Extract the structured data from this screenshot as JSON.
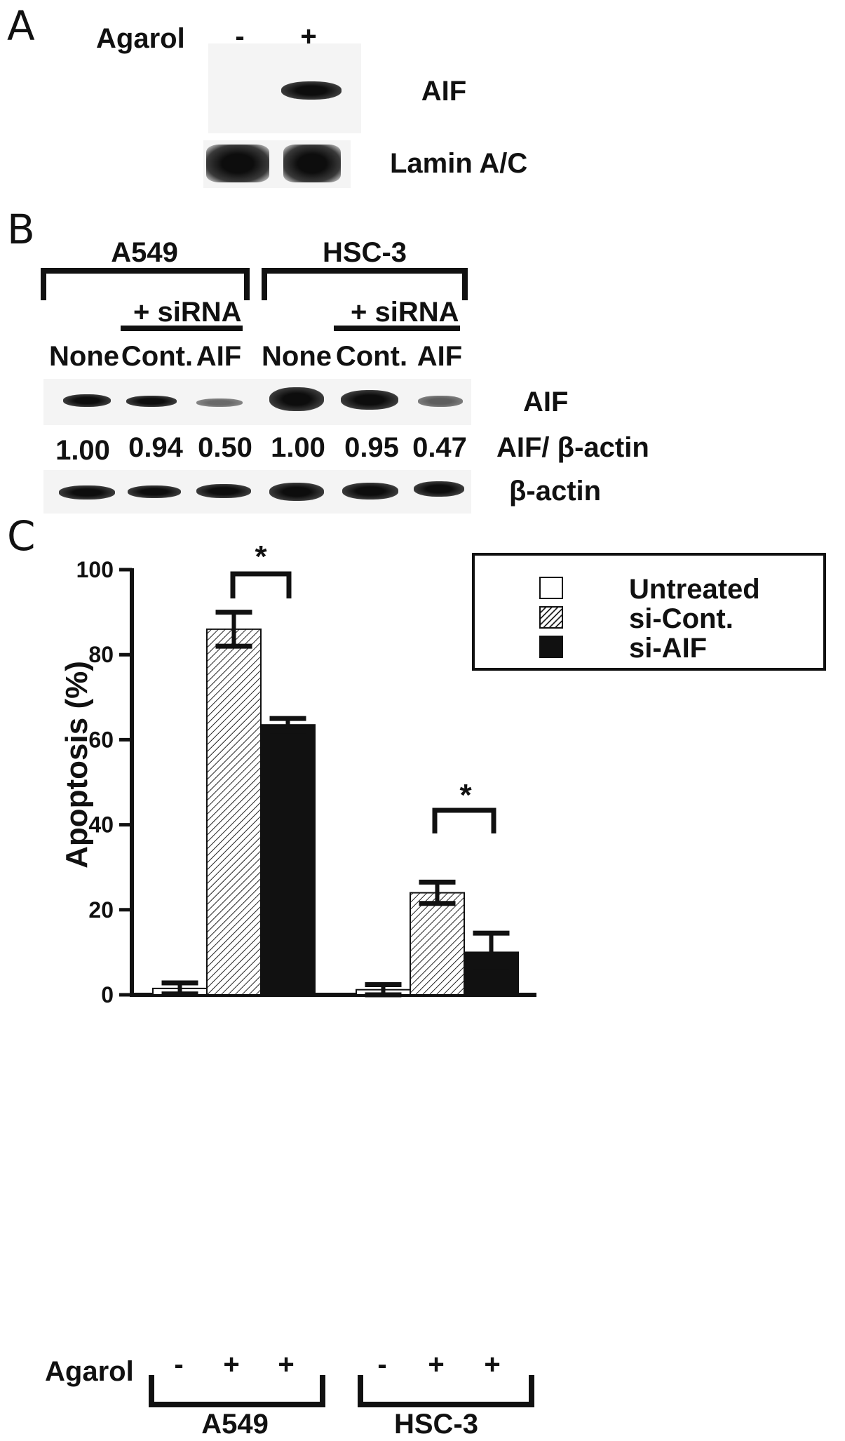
{
  "panel_a": {
    "letter": "A",
    "treatment_label": "Agarol",
    "lane_signs": [
      "-",
      "+"
    ],
    "band_labels": [
      "AIF",
      "Lamin A/C"
    ]
  },
  "panel_b": {
    "letter": "B",
    "groups": [
      {
        "name": "A549",
        "sirna_label": "+ siRNA",
        "lanes": [
          "None",
          "Cont.",
          "AIF"
        ],
        "ratios": [
          "1.00",
          "0.94",
          "0.50"
        ]
      },
      {
        "name": "HSC-3",
        "sirna_label": "+ siRNA",
        "lanes": [
          "None",
          "Cont.",
          "AIF"
        ],
        "ratios": [
          "1.00",
          "0.95",
          "0.47"
        ]
      }
    ],
    "row_labels": {
      "aif": "AIF",
      "ratio": "AIF/ β-actin",
      "actin": "β-actin"
    }
  },
  "panel_c": {
    "letter": "C",
    "agarol_label": "Agarol",
    "signs": [
      "-",
      "+",
      "+",
      "-",
      "+",
      "+"
    ],
    "group_labels": [
      "A549",
      "HSC-3"
    ],
    "significance": [
      "*",
      "*"
    ]
  },
  "chart_data": {
    "type": "bar",
    "categories": [
      "A549",
      "HSC-3"
    ],
    "ylabel": "Apoptosis (%)",
    "ylim": [
      0,
      100
    ],
    "yticks": [
      0,
      20,
      40,
      60,
      80,
      100
    ],
    "legend_position": "top-right",
    "series": [
      {
        "name": "Untreated",
        "fill": "white",
        "values": [
          1.5,
          1.2
        ],
        "errors": [
          1.3,
          1.2
        ]
      },
      {
        "name": "si-Cont.",
        "fill": "hatched",
        "values": [
          86,
          24
        ],
        "errors": [
          4,
          2.5
        ]
      },
      {
        "name": "si-AIF",
        "fill": "black",
        "values": [
          63.5,
          10
        ],
        "errors": [
          1.5,
          4.5
        ]
      }
    ]
  }
}
